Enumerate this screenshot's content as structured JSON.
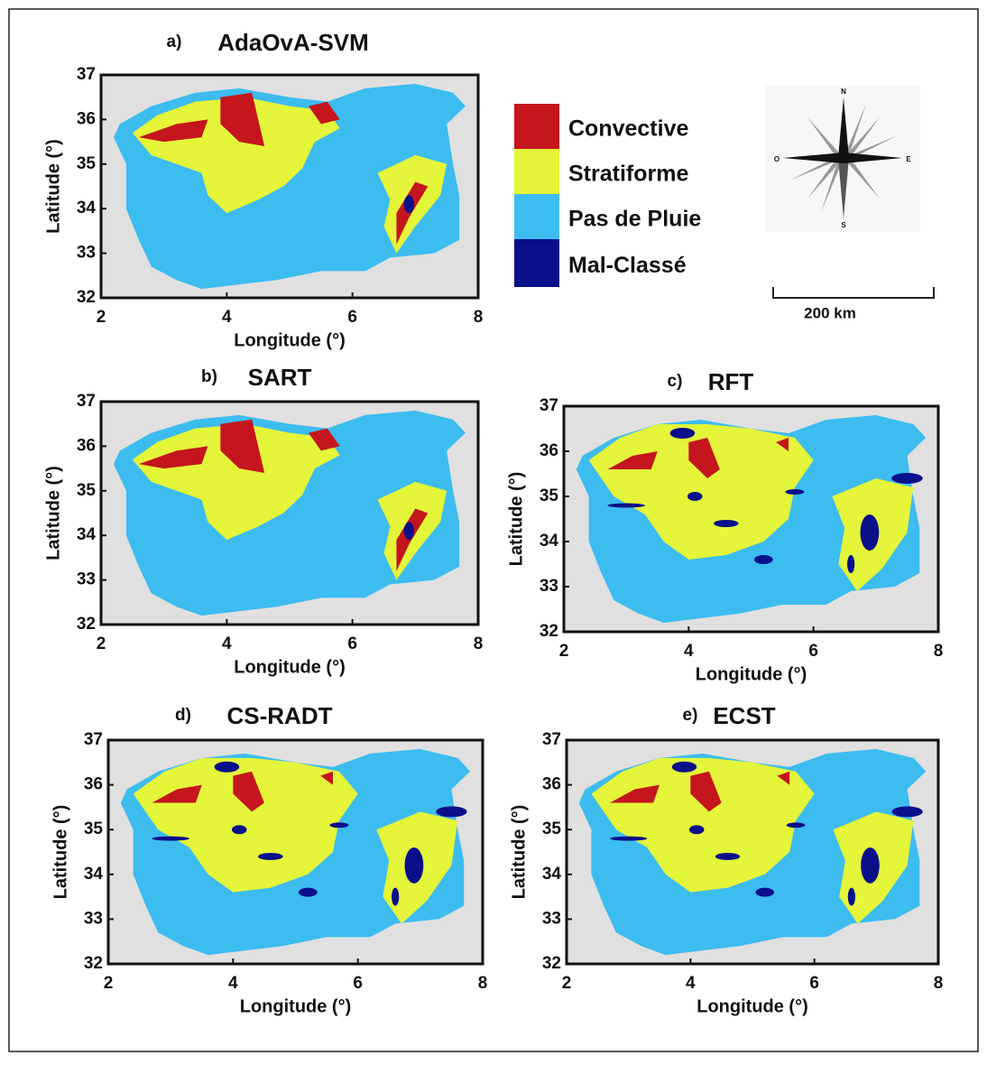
{
  "panels": [
    {
      "label": "a)",
      "title": "AdaOvA-SVM",
      "xlabel": "Longitude (°)",
      "ylabel": "Latitude (°)",
      "xlim": [
        2,
        8
      ],
      "ylim": [
        32,
        37
      ],
      "xticks": [
        2,
        4,
        6,
        8
      ],
      "yticks": [
        32,
        33,
        34,
        35,
        36,
        37
      ]
    },
    {
      "label": "b)",
      "title": "SART",
      "xlabel": "Longitude (°)",
      "ylabel": "Latitude (°)",
      "xlim": [
        2,
        8
      ],
      "ylim": [
        32,
        37
      ],
      "xticks": [
        2,
        4,
        6,
        8
      ],
      "yticks": [
        32,
        33,
        34,
        35,
        36,
        37
      ]
    },
    {
      "label": "c)",
      "title": "RFT",
      "xlabel": "Longitude (°)",
      "ylabel": "Latitude (°)",
      "xlim": [
        2,
        8
      ],
      "ylim": [
        32,
        37
      ],
      "xticks": [
        2,
        4,
        6,
        8
      ],
      "yticks": [
        32,
        33,
        34,
        35,
        36,
        37
      ]
    },
    {
      "label": "d)",
      "title": "CS-RADT",
      "xlabel": "Longitude (°)",
      "ylabel": "Latitude (°)",
      "xlim": [
        2,
        8
      ],
      "ylim": [
        32,
        37
      ],
      "xticks": [
        2,
        4,
        6,
        8
      ],
      "yticks": [
        32,
        33,
        34,
        35,
        36,
        37
      ]
    },
    {
      "label": "e)",
      "title": "ECST",
      "xlabel": "Longitude (°)",
      "ylabel": "Latitude (°)",
      "xlim": [
        2,
        8
      ],
      "ylim": [
        32,
        37
      ],
      "xticks": [
        2,
        4,
        6,
        8
      ],
      "yticks": [
        32,
        33,
        34,
        35,
        36,
        37
      ]
    }
  ],
  "legend": [
    {
      "label": "Convective",
      "color": "#c4161c"
    },
    {
      "label": "Stratiforme",
      "color": "#e4f53a"
    },
    {
      "label": "Pas de Pluie",
      "color": "#3dbcf0"
    },
    {
      "label": "Mal-Classé",
      "color": "#0a0f8a"
    }
  ],
  "compass": {
    "north": "N",
    "east": "E",
    "south": "S",
    "west": "O"
  },
  "scale_bar": "200 km"
}
